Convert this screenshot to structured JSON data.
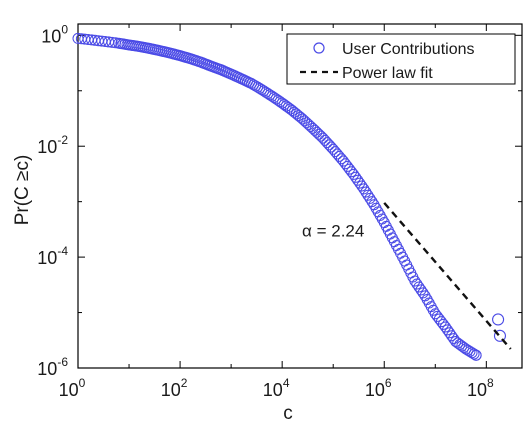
{
  "chart_data": {
    "type": "scatter",
    "x_scale": "log",
    "y_scale": "log",
    "xlim": [
      1,
      500000000
    ],
    "ylim": [
      1e-06,
      1.6
    ],
    "xlabel": "c",
    "ylabel": "Pr(C ≥c)",
    "x_ticks": [
      {
        "value": 1,
        "base": "10",
        "exp": "0"
      },
      {
        "value": 100,
        "base": "10",
        "exp": "2"
      },
      {
        "value": 10000,
        "base": "10",
        "exp": "4"
      },
      {
        "value": 1000000,
        "base": "10",
        "exp": "6"
      },
      {
        "value": 100000000,
        "base": "10",
        "exp": "8"
      }
    ],
    "y_ticks": [
      {
        "value": 1,
        "base": "10",
        "exp": "0"
      },
      {
        "value": 0.01,
        "base": "10",
        "exp": "-2"
      },
      {
        "value": 0.0001,
        "base": "10",
        "exp": "-4"
      },
      {
        "value": 1e-06,
        "base": "10",
        "exp": "-6"
      }
    ],
    "series": [
      {
        "name": "User Contributions",
        "marker": "open-circle",
        "color": "#4a4ae6",
        "x": [
          1,
          1.58,
          2.51,
          3.98,
          6.31,
          10,
          15.8,
          25.1,
          39.8,
          63.1,
          100,
          158,
          251,
          398,
          631,
          1000,
          1580,
          2510,
          3980,
          6310,
          10000,
          15800,
          25100,
          39800,
          63100,
          100000,
          158000,
          251000,
          398000,
          631000,
          1000000,
          1580000,
          2510000,
          3980000,
          6310000,
          10000000,
          15800000,
          25100000,
          39800000,
          63100000,
          170000000,
          185000000
        ],
        "y": [
          0.88,
          0.84,
          0.8,
          0.76,
          0.72,
          0.67,
          0.63,
          0.58,
          0.53,
          0.48,
          0.43,
          0.38,
          0.33,
          0.28,
          0.24,
          0.2,
          0.165,
          0.135,
          0.105,
          0.08,
          0.06,
          0.044,
          0.031,
          0.021,
          0.014,
          0.0088,
          0.0054,
          0.0031,
          0.0017,
          0.00088,
          0.00042,
          0.00019,
          8.5e-05,
          3.7e-05,
          2e-05,
          9.5e-06,
          5.5e-06,
          3e-06,
          2.2e-06,
          1.7e-06,
          7.5e-06,
          3.8e-06
        ]
      },
      {
        "name": "Power law fit",
        "style": "dashed",
        "color": "#111111",
        "x": [
          1000000,
          300000000
        ],
        "y": [
          0.00095,
          2.2e-06
        ]
      }
    ],
    "legend": {
      "position": "top-right",
      "items": [
        "User Contributions",
        "Power law fit"
      ]
    },
    "annotations": [
      {
        "text": "α = 2.24",
        "x": 700000,
        "y": 0.0003
      }
    ],
    "grid": false
  }
}
